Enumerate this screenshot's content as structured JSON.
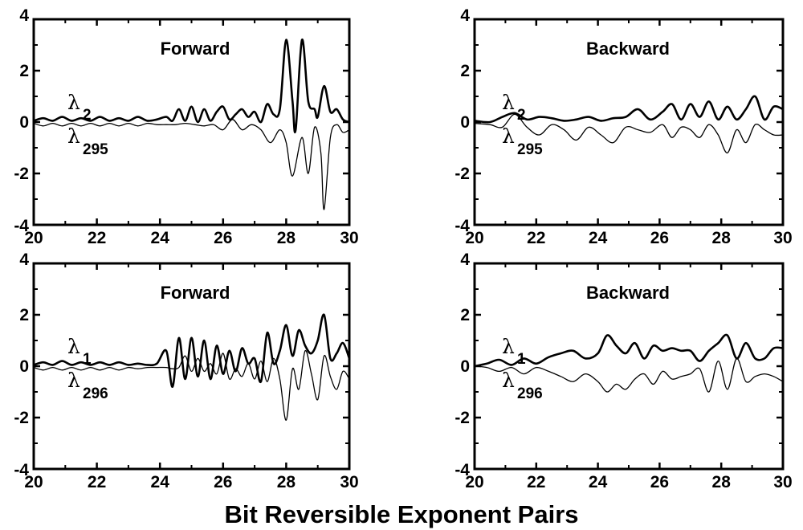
{
  "figure": {
    "xlabel": "Bit Reversible Exponent Pairs",
    "colors": {
      "line": "#000000",
      "background": "#ffffff"
    }
  },
  "chart_data": [
    {
      "type": "line",
      "title": "Forward",
      "xlim": [
        20,
        30
      ],
      "ylim": [
        -4,
        4
      ],
      "xticks": [
        "20",
        "22",
        "24",
        "26",
        "28",
        "30"
      ],
      "yticks": [
        "4",
        "2",
        "0",
        "-2",
        "-4"
      ],
      "labels": [
        {
          "symbol": "λ",
          "sub": "2"
        },
        {
          "symbol": "λ",
          "sub": "295"
        }
      ],
      "series": [
        {
          "x": [
            20.0,
            20.3,
            20.6,
            20.9,
            21.2,
            21.5,
            21.8,
            22.1,
            22.4,
            22.7,
            23.0,
            23.3,
            23.6,
            23.9,
            24.2,
            24.4,
            24.6,
            24.8,
            25.0,
            25.2,
            25.4,
            25.6,
            25.8,
            26.0,
            26.2,
            26.4,
            26.6,
            26.8,
            27.0,
            27.2,
            27.4,
            27.6,
            27.8,
            28.0,
            28.2,
            28.3,
            28.5,
            28.7,
            28.9,
            29.0,
            29.2,
            29.4,
            29.6,
            29.8,
            30.0
          ],
          "y": [
            0.05,
            0.15,
            0.05,
            0.2,
            0.05,
            0.15,
            0.05,
            0.2,
            0.05,
            0.15,
            0.05,
            0.2,
            0.05,
            0.1,
            0.2,
            0.05,
            0.5,
            0.05,
            0.6,
            0.0,
            0.5,
            0.05,
            0.4,
            0.6,
            0.1,
            0.3,
            0.5,
            0.2,
            0.4,
            0.0,
            0.7,
            0.3,
            0.5,
            3.2,
            0.8,
            -0.3,
            3.2,
            0.8,
            0.5,
            0.2,
            1.4,
            0.4,
            0.5,
            0.1,
            0.0
          ]
        },
        {
          "x": [
            20.0,
            20.3,
            20.6,
            20.9,
            21.2,
            21.5,
            21.8,
            22.1,
            22.4,
            22.7,
            23.0,
            23.3,
            23.6,
            23.9,
            24.2,
            24.5,
            24.8,
            25.1,
            25.4,
            25.7,
            26.0,
            26.3,
            26.6,
            26.9,
            27.2,
            27.5,
            27.8,
            28.0,
            28.2,
            28.5,
            28.7,
            28.9,
            29.1,
            29.2,
            29.4,
            29.6,
            29.8,
            30.0
          ],
          "y": [
            -0.05,
            -0.15,
            -0.05,
            -0.15,
            -0.05,
            -0.15,
            -0.05,
            -0.15,
            -0.05,
            -0.15,
            -0.05,
            -0.15,
            -0.05,
            -0.1,
            -0.1,
            -0.1,
            -0.05,
            -0.1,
            -0.15,
            -0.1,
            -0.3,
            0.1,
            -0.3,
            -0.1,
            -0.3,
            -0.8,
            -0.3,
            -0.8,
            -2.1,
            -0.6,
            -2.0,
            -0.2,
            -1.2,
            -3.4,
            -0.6,
            -0.1,
            -0.4,
            -0.3
          ]
        }
      ]
    },
    {
      "type": "line",
      "title": "Backward",
      "xlim": [
        20,
        30
      ],
      "ylim": [
        -4,
        4
      ],
      "xticks": [
        "20",
        "22",
        "24",
        "26",
        "28",
        "30"
      ],
      "yticks": [
        "4",
        "2",
        "0",
        "-2",
        "-4"
      ],
      "labels": [
        {
          "symbol": "λ",
          "sub": "2"
        },
        {
          "symbol": "λ",
          "sub": "295"
        }
      ],
      "series": [
        {
          "x": [
            20.0,
            20.5,
            20.9,
            21.3,
            21.7,
            22.1,
            22.5,
            22.9,
            23.3,
            23.7,
            24.1,
            24.5,
            24.9,
            25.3,
            25.7,
            26.1,
            26.4,
            26.7,
            27.0,
            27.3,
            27.6,
            27.9,
            28.2,
            28.5,
            28.8,
            29.1,
            29.4,
            29.7,
            30.0
          ],
          "y": [
            0.05,
            0.0,
            0.2,
            0.35,
            0.1,
            0.2,
            0.15,
            0.05,
            0.1,
            0.2,
            0.05,
            0.15,
            0.2,
            0.5,
            0.1,
            0.4,
            0.7,
            0.1,
            0.7,
            0.2,
            0.8,
            0.1,
            0.6,
            0.1,
            0.5,
            1.0,
            0.1,
            0.6,
            0.5
          ]
        },
        {
          "x": [
            20.0,
            20.5,
            20.9,
            21.3,
            21.7,
            22.1,
            22.5,
            22.9,
            23.3,
            23.7,
            24.1,
            24.5,
            24.9,
            25.3,
            25.7,
            26.1,
            26.4,
            26.7,
            27.0,
            27.3,
            27.6,
            27.9,
            28.2,
            28.5,
            28.8,
            29.1,
            29.4,
            29.7,
            30.0
          ],
          "y": [
            -0.05,
            -0.1,
            -0.2,
            0.3,
            -0.2,
            -0.5,
            -0.1,
            -0.3,
            -0.7,
            -0.2,
            -0.5,
            -0.8,
            -0.2,
            -0.3,
            -0.4,
            -0.1,
            -0.6,
            -0.2,
            -0.3,
            -0.6,
            -0.1,
            -0.5,
            -1.2,
            -0.3,
            -0.8,
            -0.1,
            -0.3,
            -0.5,
            -0.5
          ]
        }
      ]
    },
    {
      "type": "line",
      "title": "Forward",
      "xlim": [
        20,
        30
      ],
      "ylim": [
        -4,
        4
      ],
      "xticks": [
        "20",
        "22",
        "24",
        "26",
        "28",
        "30"
      ],
      "yticks": [
        "4",
        "2",
        "0",
        "-2",
        "-4"
      ],
      "labels": [
        {
          "symbol": "λ",
          "sub": "1"
        },
        {
          "symbol": "λ",
          "sub": "296"
        }
      ],
      "series": [
        {
          "x": [
            20.0,
            20.3,
            20.6,
            20.9,
            21.2,
            21.5,
            21.8,
            22.1,
            22.4,
            22.7,
            23.0,
            23.3,
            23.6,
            23.9,
            24.2,
            24.4,
            24.6,
            24.8,
            25.0,
            25.2,
            25.4,
            25.6,
            25.8,
            26.0,
            26.2,
            26.4,
            26.6,
            26.8,
            27.0,
            27.2,
            27.4,
            27.6,
            27.8,
            28.0,
            28.2,
            28.4,
            28.6,
            28.8,
            29.0,
            29.2,
            29.4,
            29.6,
            29.8,
            30.0
          ],
          "y": [
            0.05,
            0.15,
            0.05,
            0.2,
            0.05,
            0.15,
            0.05,
            0.15,
            0.05,
            0.15,
            0.05,
            0.1,
            0.05,
            0.1,
            0.6,
            -0.8,
            1.1,
            -0.5,
            1.1,
            -0.4,
            1.0,
            -0.5,
            0.8,
            -0.3,
            0.6,
            -0.2,
            0.7,
            0.1,
            0.3,
            -0.6,
            1.3,
            0.1,
            0.6,
            1.6,
            0.4,
            1.4,
            0.8,
            0.5,
            1.0,
            2.0,
            0.3,
            0.5,
            0.9,
            0.3
          ]
        },
        {
          "x": [
            20.0,
            20.3,
            20.6,
            20.9,
            21.2,
            21.5,
            21.8,
            22.1,
            22.4,
            22.7,
            23.0,
            23.3,
            23.6,
            23.9,
            24.2,
            24.4,
            24.6,
            24.8,
            25.0,
            25.2,
            25.4,
            25.6,
            25.8,
            26.0,
            26.2,
            26.4,
            26.6,
            26.8,
            27.0,
            27.2,
            27.4,
            27.6,
            27.8,
            28.0,
            28.2,
            28.4,
            28.6,
            28.8,
            29.0,
            29.2,
            29.4,
            29.6,
            29.8,
            30.0
          ],
          "y": [
            -0.05,
            -0.15,
            -0.05,
            -0.15,
            -0.05,
            -0.15,
            -0.05,
            -0.15,
            -0.05,
            -0.15,
            -0.05,
            -0.1,
            -0.05,
            -0.05,
            -0.05,
            -0.1,
            -0.05,
            0.4,
            -0.2,
            0.3,
            -0.2,
            0.1,
            -0.3,
            0.5,
            -0.5,
            -0.1,
            -0.4,
            0.1,
            -0.5,
            0.2,
            -0.6,
            0.3,
            -0.5,
            -2.1,
            -0.1,
            -0.9,
            0.6,
            -0.3,
            -1.3,
            0.4,
            -0.4,
            -0.9,
            -0.2,
            -0.5
          ]
        }
      ]
    },
    {
      "type": "line",
      "title": "Backward",
      "xlim": [
        20,
        30
      ],
      "ylim": [
        -4,
        4
      ],
      "xticks": [
        "20",
        "22",
        "24",
        "26",
        "28",
        "30"
      ],
      "yticks": [
        "4",
        "2",
        "0",
        "-2",
        "-4"
      ],
      "labels": [
        {
          "symbol": "λ",
          "sub": "1"
        },
        {
          "symbol": "λ",
          "sub": "296"
        }
      ],
      "series": [
        {
          "x": [
            20.0,
            20.4,
            20.8,
            21.2,
            21.6,
            22.0,
            22.4,
            22.8,
            23.2,
            23.6,
            24.0,
            24.3,
            24.6,
            24.9,
            25.2,
            25.5,
            25.8,
            26.1,
            26.4,
            26.7,
            27.0,
            27.3,
            27.6,
            27.9,
            28.2,
            28.5,
            28.8,
            29.1,
            29.4,
            29.7,
            30.0
          ],
          "y": [
            0.0,
            0.1,
            0.25,
            0.05,
            0.3,
            0.1,
            0.35,
            0.5,
            0.6,
            0.3,
            0.5,
            1.2,
            0.8,
            0.5,
            0.9,
            0.3,
            0.8,
            0.6,
            0.7,
            0.6,
            0.6,
            0.2,
            0.6,
            0.9,
            1.2,
            0.3,
            0.9,
            0.3,
            0.3,
            0.7,
            0.7
          ]
        },
        {
          "x": [
            20.0,
            20.4,
            20.8,
            21.2,
            21.6,
            22.0,
            22.4,
            22.8,
            23.2,
            23.6,
            24.0,
            24.3,
            24.6,
            24.9,
            25.2,
            25.5,
            25.8,
            26.1,
            26.4,
            26.7,
            27.0,
            27.3,
            27.6,
            27.9,
            28.2,
            28.5,
            28.8,
            29.1,
            29.4,
            29.7,
            30.0
          ],
          "y": [
            0.0,
            -0.05,
            -0.2,
            -0.05,
            -0.3,
            -0.05,
            -0.2,
            -0.4,
            -0.6,
            -0.3,
            -0.6,
            -1.0,
            -0.7,
            -0.9,
            -0.5,
            -0.3,
            -0.7,
            -0.2,
            -0.5,
            -0.4,
            -0.3,
            -0.1,
            -1.0,
            0.2,
            -0.9,
            0.3,
            -0.6,
            -0.4,
            -0.3,
            -0.4,
            -0.6
          ]
        }
      ]
    }
  ]
}
